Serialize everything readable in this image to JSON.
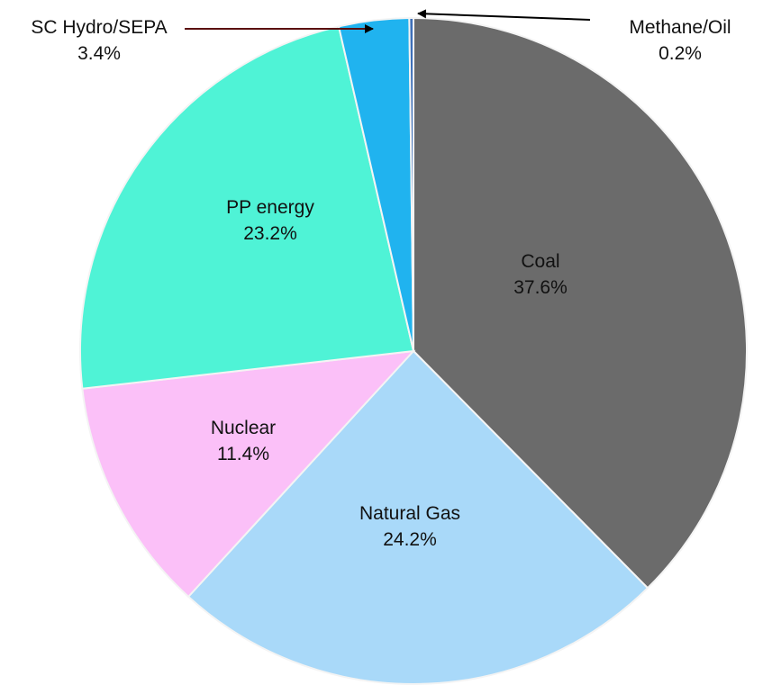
{
  "chart_data": {
    "type": "pie",
    "categories": [
      "Coal",
      "Natural Gas",
      "Nuclear",
      "PP energy",
      "SC Hydro/SEPA",
      "Methane/Oil"
    ],
    "values": [
      37.6,
      24.2,
      11.4,
      23.2,
      3.4,
      0.2
    ],
    "value_labels": [
      "37.6%",
      "24.2%",
      "11.4%",
      "23.2%",
      "3.4%",
      "0.2%"
    ],
    "colors": [
      "#6b6b6b",
      "#a9d9f9",
      "#fbc0f8",
      "#4ff3d6",
      "#20b3ef",
      "#3d6fb8"
    ]
  }
}
